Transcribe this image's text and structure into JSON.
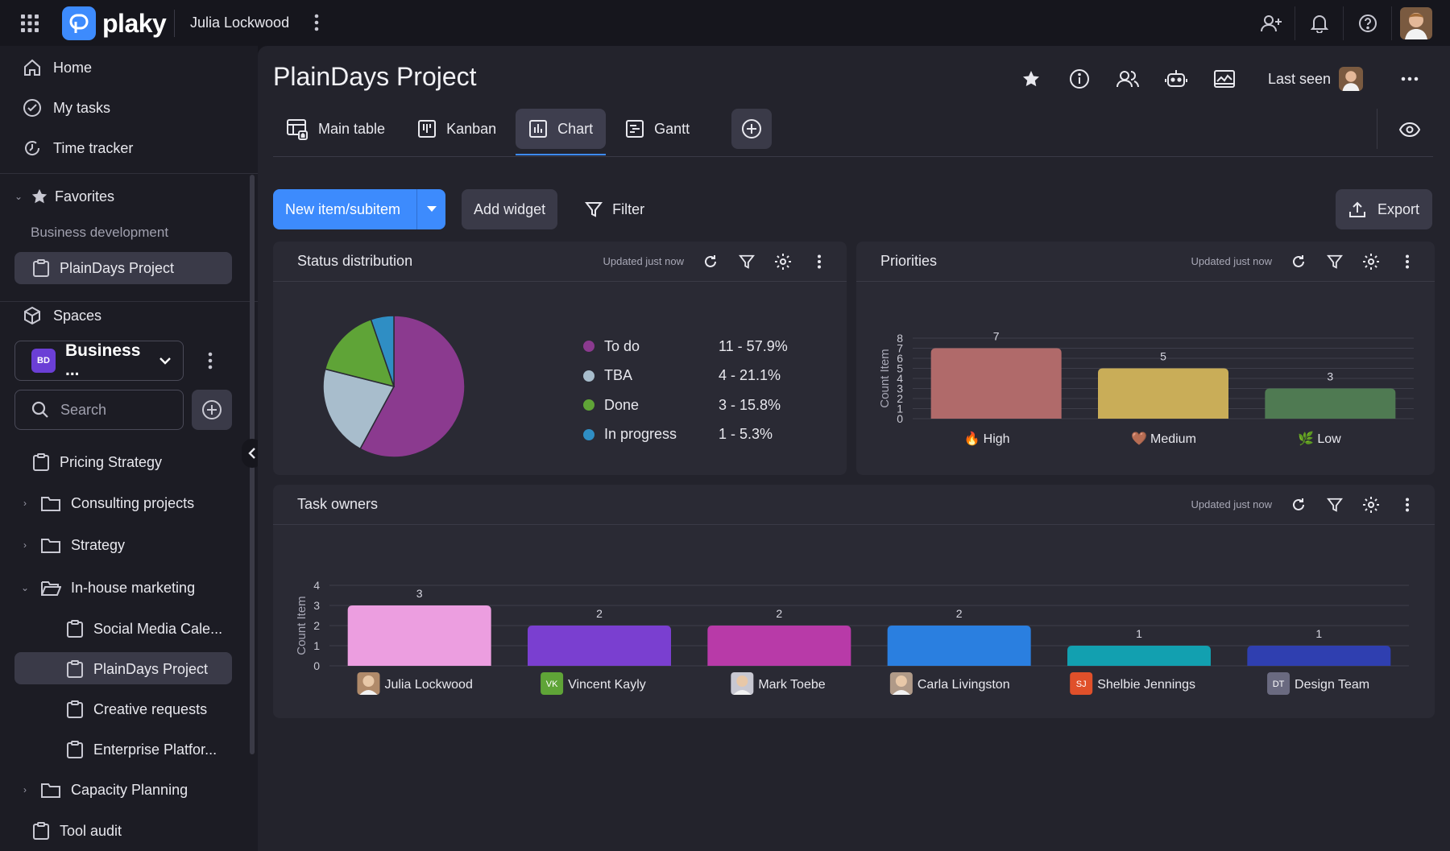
{
  "app": {
    "brand": "plaky",
    "workspace_user": "Julia Lockwood"
  },
  "sidebar": {
    "nav": [
      {
        "label": "Home",
        "icon": "home-icon"
      },
      {
        "label": "My tasks",
        "icon": "check-circle-icon"
      },
      {
        "label": "Time tracker",
        "icon": "time-tracker-icon"
      }
    ],
    "favorites": {
      "label": "Favorites",
      "group": "Business development",
      "item": "PlainDays Project"
    },
    "spaces_label": "Spaces",
    "workspace": {
      "badge": "BD",
      "name": "Business ..."
    },
    "search_placeholder": "Search",
    "tree": {
      "pricing": "Pricing Strategy",
      "consulting": "Consulting projects",
      "strategy": "Strategy",
      "inhouse": "In-house marketing",
      "social": "Social Media Cale...",
      "plaindays": "PlainDays Project",
      "creative": "Creative requests",
      "enterprise": "Enterprise Platfor...",
      "capacity": "Capacity Planning",
      "tool": "Tool audit"
    }
  },
  "main": {
    "title": "PlainDays Project",
    "last_seen": "Last seen",
    "tabs": [
      {
        "label": "Main table",
        "icon": "table-icon"
      },
      {
        "label": "Kanban",
        "icon": "kanban-icon"
      },
      {
        "label": "Chart",
        "icon": "chart-icon",
        "active": true
      },
      {
        "label": "Gantt",
        "icon": "gantt-icon"
      }
    ],
    "toolbar": {
      "new_item": "New item/subitem",
      "add_widget": "Add widget",
      "filter": "Filter",
      "export": "Export"
    }
  },
  "widgets": {
    "status": {
      "title": "Status distribution",
      "updated": "Updated just now",
      "legend": [
        {
          "label": "To do",
          "value": "11 - 57.9%",
          "color": "#8b3a8f"
        },
        {
          "label": "TBA",
          "value": "4 - 21.1%",
          "color": "#a8bdcc"
        },
        {
          "label": "Done",
          "value": "3 - 15.8%",
          "color": "#5fa437"
        },
        {
          "label": "In progress",
          "value": "1 - 5.3%",
          "color": "#2f8ec4"
        }
      ]
    },
    "priorities": {
      "title": "Priorities",
      "updated": "Updated just now"
    },
    "owners": {
      "title": "Task owners",
      "updated": "Updated just now"
    }
  },
  "chart_data": [
    {
      "type": "pie",
      "title": "Status distribution",
      "categories": [
        "To do",
        "TBA",
        "Done",
        "In progress"
      ],
      "values": [
        11,
        4,
        3,
        1
      ],
      "colors": [
        "#8b3a8f",
        "#a8bdcc",
        "#5fa437",
        "#2f8ec4"
      ]
    },
    {
      "type": "bar",
      "title": "Priorities",
      "ylabel": "Count Item",
      "categories": [
        "High",
        "Medium",
        "Low"
      ],
      "category_icons": [
        "🔥",
        "🤎",
        "🌿"
      ],
      "values": [
        7,
        5,
        3
      ],
      "colors": [
        "#b06a6a",
        "#c9ad58",
        "#4f7a52"
      ],
      "ylim": [
        0,
        8
      ],
      "yticks": [
        0,
        1,
        2,
        3,
        4,
        5,
        6,
        7,
        8
      ]
    },
    {
      "type": "bar",
      "title": "Task owners",
      "ylabel": "Count Item",
      "categories": [
        "Julia Lockwood",
        "Vincent Kayly",
        "Mark Toebe",
        "Carla Livingston",
        "Shelbie Jennings",
        "Design Team"
      ],
      "badges": [
        "",
        "VK",
        "",
        "",
        "SJ",
        "DT"
      ],
      "badge_colors": [
        "#b08a6a",
        "#5fa437",
        "#c8c8d2",
        "#b09a88",
        "#e0502a",
        "#6a6a80"
      ],
      "values": [
        3,
        2,
        2,
        2,
        1,
        1
      ],
      "colors": [
        "#ec9ee0",
        "#7a3fd0",
        "#b83aa8",
        "#2a7fe0",
        "#12a0b0",
        "#2f3fb0"
      ],
      "ylim": [
        0,
        4
      ],
      "yticks": [
        0,
        1,
        2,
        3,
        4
      ]
    }
  ]
}
